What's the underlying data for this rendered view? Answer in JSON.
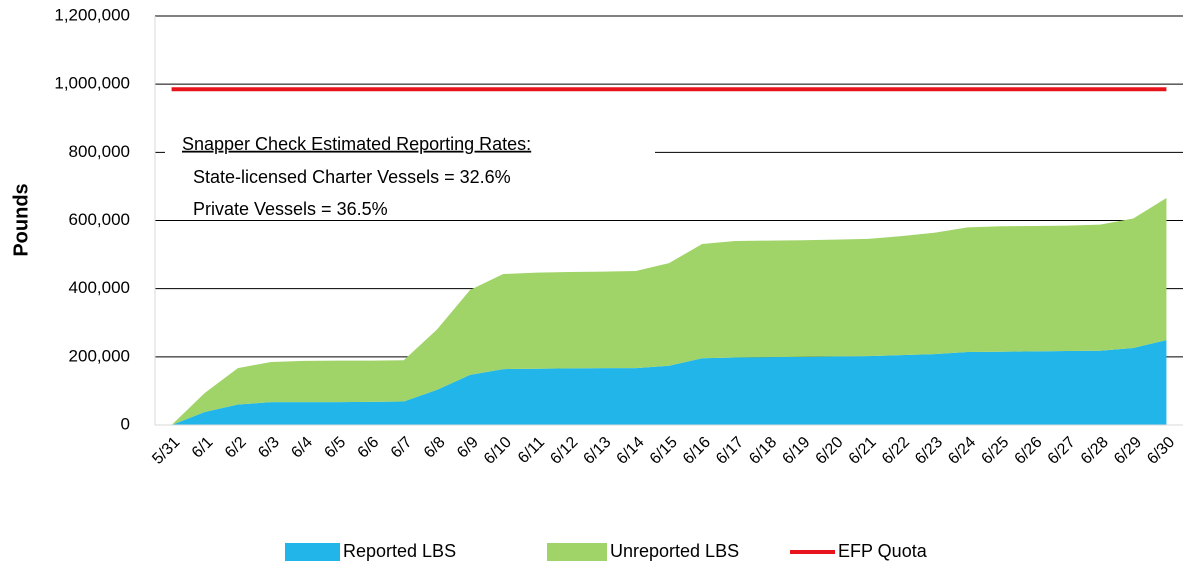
{
  "chart_data": {
    "type": "stacked_area",
    "y_label": "Pounds",
    "categories": [
      "5/31",
      "6/1",
      "6/2",
      "6/3",
      "6/4",
      "6/5",
      "6/6",
      "6/7",
      "6/8",
      "6/9",
      "6/10",
      "6/11",
      "6/12",
      "6/13",
      "6/14",
      "6/15",
      "6/16",
      "6/17",
      "6/18",
      "6/19",
      "6/20",
      "6/21",
      "6/22",
      "6/23",
      "6/24",
      "6/25",
      "6/26",
      "6/27",
      "6/28",
      "6/29",
      "6/30"
    ],
    "series": [
      {
        "name": "Reported LBS",
        "color": "#21b5ea",
        "values": [
          0,
          38000,
          60000,
          67000,
          67000,
          67000,
          68000,
          69000,
          103000,
          147000,
          164000,
          165000,
          166000,
          167000,
          167000,
          174000,
          196000,
          198000,
          199000,
          200000,
          201000,
          202000,
          205000,
          208000,
          214000,
          215000,
          216000,
          217000,
          218000,
          226000,
          249000
        ]
      },
      {
        "name": "Unreported LBS",
        "color": "#a0d468",
        "values": [
          0,
          56000,
          107000,
          118000,
          121000,
          122000,
          121000,
          121000,
          177000,
          249000,
          279000,
          282000,
          283000,
          283000,
          285000,
          301000,
          335000,
          342000,
          342000,
          342000,
          343000,
          344000,
          349000,
          356000,
          366000,
          368000,
          368000,
          368000,
          370000,
          380000,
          417000
        ]
      },
      {
        "name": "EFP Quota",
        "color": "#e8141b",
        "line": true,
        "values": [
          985000,
          985000,
          985000,
          985000,
          985000,
          985000,
          985000,
          985000,
          985000,
          985000,
          985000,
          985000,
          985000,
          985000,
          985000,
          985000,
          985000,
          985000,
          985000,
          985000,
          985000,
          985000,
          985000,
          985000,
          985000,
          985000,
          985000,
          985000,
          985000,
          985000,
          985000
        ]
      }
    ],
    "annotations": [
      "Snapper Check Estimated Reporting Rates:",
      "State-licensed Charter Vessels = 32.6%",
      "Private Vessels = 36.5%"
    ],
    "ylim": [
      0,
      1200000
    ],
    "yticks": [
      0,
      {
        "value": 200000,
        "label": "200,000"
      },
      {
        "value": 400000,
        "label": "400,000"
      },
      {
        "value": 600000,
        "label": "600,000"
      },
      {
        "value": 800000,
        "label": "800,000"
      },
      {
        "value": 1000000,
        "label": "1,000,000"
      },
      {
        "value": 1200000,
        "label": "1,200,000"
      }
    ],
    "grid": true,
    "legend": "bottom"
  }
}
